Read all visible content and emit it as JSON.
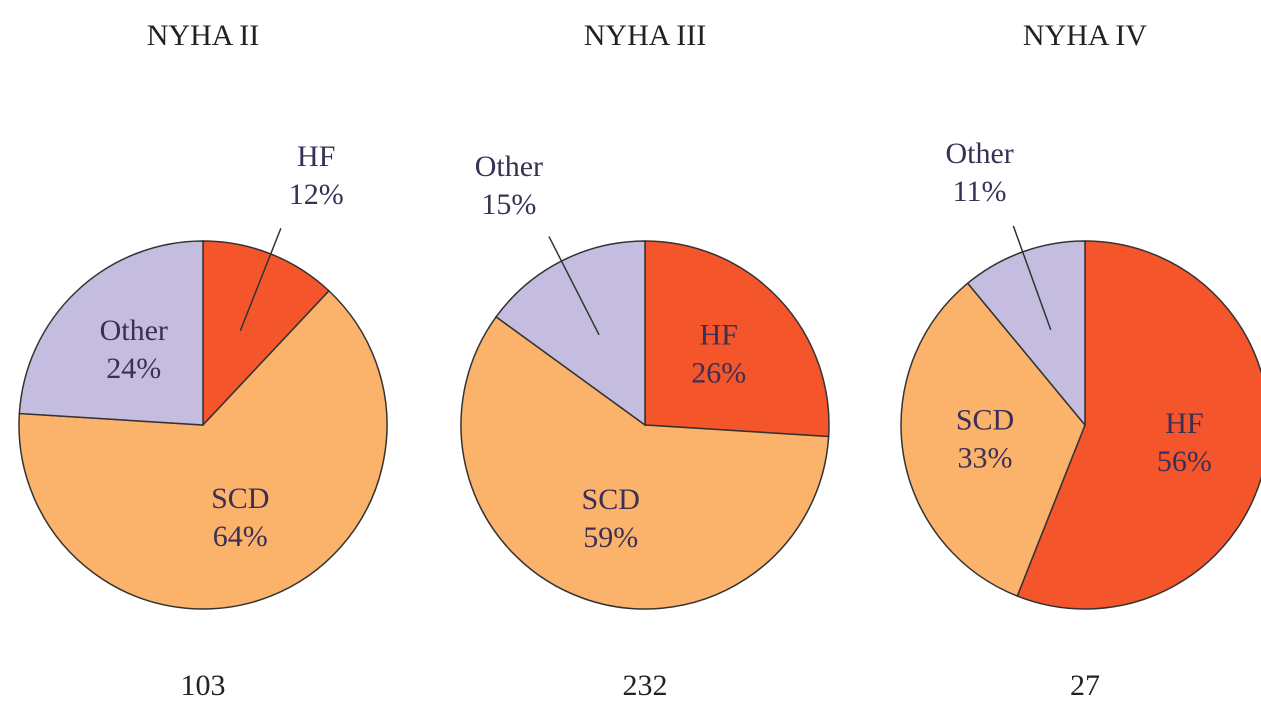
{
  "chart_data": [
    {
      "type": "pie",
      "title": "NYHA II",
      "categories": [
        "HF",
        "SCD",
        "Other"
      ],
      "values": [
        12,
        64,
        24
      ],
      "value_labels": [
        "12%",
        "64%",
        "24%"
      ],
      "colors": [
        "#f4552a",
        "#fbb36b",
        "#c5bde0"
      ],
      "count": 103
    },
    {
      "type": "pie",
      "title": "NYHA III",
      "categories": [
        "HF",
        "SCD",
        "Other"
      ],
      "values": [
        26,
        59,
        15
      ],
      "value_labels": [
        "26%",
        "59%",
        "15%"
      ],
      "colors": [
        "#f4552a",
        "#fbb36b",
        "#c5bde0"
      ],
      "count": 232
    },
    {
      "type": "pie",
      "title": "NYHA IV",
      "categories": [
        "HF",
        "SCD",
        "Other"
      ],
      "values": [
        56,
        33,
        11
      ],
      "value_labels": [
        "56%",
        "33%",
        "11%"
      ],
      "colors": [
        "#f4552a",
        "#fbb36b",
        "#c5bde0"
      ],
      "count": 27
    }
  ]
}
